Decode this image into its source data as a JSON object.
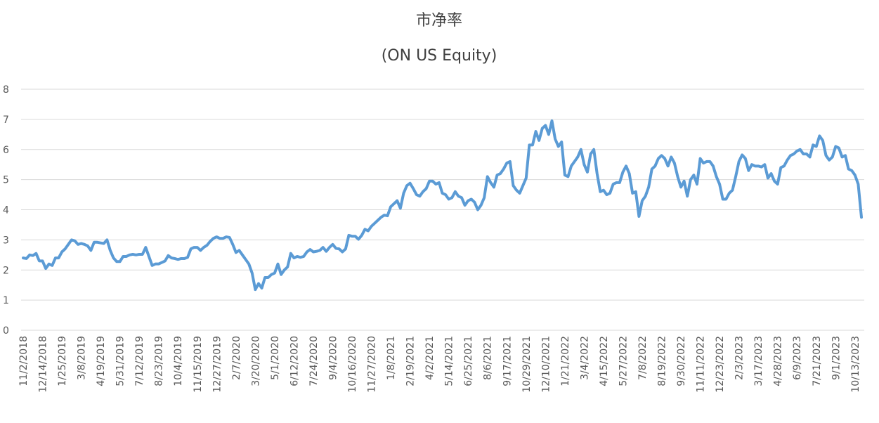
{
  "chart_data": {
    "type": "line",
    "title": "市净率",
    "subtitle": "(ON US Equity)",
    "categories": [
      "11/2/2018",
      null,
      null,
      null,
      null,
      null,
      "12/14/2018",
      null,
      null,
      null,
      null,
      null,
      "1/25/2019",
      null,
      null,
      null,
      null,
      null,
      "3/8/2019",
      null,
      null,
      null,
      null,
      null,
      "4/19/2019",
      null,
      null,
      null,
      null,
      null,
      "5/31/2019",
      null,
      null,
      null,
      null,
      null,
      "7/12/2019",
      null,
      null,
      null,
      null,
      null,
      "8/23/2019",
      null,
      null,
      null,
      null,
      null,
      "10/4/2019",
      null,
      null,
      null,
      null,
      null,
      "11/15/2019",
      null,
      null,
      null,
      null,
      null,
      "12/27/2019",
      null,
      null,
      null,
      null,
      null,
      "2/7/2020",
      null,
      null,
      null,
      null,
      null,
      "3/20/2020",
      null,
      null,
      null,
      null,
      null,
      "5/1/2020",
      null,
      null,
      null,
      null,
      null,
      "6/12/2020",
      null,
      null,
      null,
      null,
      null,
      "7/24/2020",
      null,
      null,
      null,
      null,
      null,
      "9/4/2020",
      null,
      null,
      null,
      null,
      null,
      "10/16/2020",
      null,
      null,
      null,
      null,
      null,
      "11/27/2020",
      null,
      null,
      null,
      null,
      null,
      "1/8/2021",
      null,
      null,
      null,
      null,
      null,
      "2/19/2021",
      null,
      null,
      null,
      null,
      null,
      "4/2/2021",
      null,
      null,
      null,
      null,
      null,
      "5/14/2021",
      null,
      null,
      null,
      null,
      null,
      "6/25/2021",
      null,
      null,
      null,
      null,
      null,
      "8/6/2021",
      null,
      null,
      null,
      null,
      null,
      "9/17/2021",
      null,
      null,
      null,
      null,
      null,
      "10/29/2021",
      null,
      null,
      null,
      null,
      null,
      "12/10/2021",
      null,
      null,
      null,
      null,
      null,
      "1/21/2022",
      null,
      null,
      null,
      null,
      null,
      "3/4/2022",
      null,
      null,
      null,
      null,
      null,
      "4/15/2022",
      null,
      null,
      null,
      null,
      null,
      "5/27/2022",
      null,
      null,
      null,
      null,
      null,
      "7/8/2022",
      null,
      null,
      null,
      null,
      null,
      "8/19/2022",
      null,
      null,
      null,
      null,
      null,
      "9/30/2022",
      null,
      null,
      null,
      null,
      null,
      "11/11/2022",
      null,
      null,
      null,
      null,
      null,
      "12/23/2022",
      null,
      null,
      null,
      null,
      null,
      "2/3/2023",
      null,
      null,
      null,
      null,
      null,
      "3/17/2023",
      null,
      null,
      null,
      null,
      null,
      "4/28/2023",
      null,
      null,
      null,
      null,
      null,
      "6/9/2023",
      null,
      null,
      null,
      null,
      null,
      "7/21/2023",
      null,
      null,
      null,
      null,
      null,
      "9/1/2023",
      null,
      null,
      null,
      null,
      null,
      "10/13/2023",
      null,
      null
    ],
    "values": [
      2.4,
      2.38,
      2.5,
      2.48,
      2.55,
      2.3,
      2.3,
      2.05,
      2.2,
      2.15,
      2.4,
      2.4,
      2.6,
      2.7,
      2.85,
      3.0,
      2.97,
      2.85,
      2.88,
      2.85,
      2.8,
      2.65,
      2.92,
      2.92,
      2.9,
      2.88,
      3.0,
      2.65,
      2.4,
      2.28,
      2.28,
      2.45,
      2.45,
      2.5,
      2.52,
      2.5,
      2.52,
      2.52,
      2.75,
      2.45,
      2.15,
      2.2,
      2.2,
      2.25,
      2.3,
      2.48,
      2.4,
      2.38,
      2.35,
      2.38,
      2.38,
      2.42,
      2.7,
      2.75,
      2.75,
      2.65,
      2.75,
      2.82,
      2.95,
      3.05,
      3.1,
      3.05,
      3.05,
      3.1,
      3.08,
      2.85,
      2.58,
      2.65,
      2.5,
      2.35,
      2.2,
      1.9,
      1.35,
      1.55,
      1.4,
      1.75,
      1.75,
      1.85,
      1.9,
      2.2,
      1.85,
      2.0,
      2.1,
      2.55,
      2.4,
      2.45,
      2.42,
      2.45,
      2.6,
      2.68,
      2.6,
      2.62,
      2.65,
      2.75,
      2.62,
      2.75,
      2.85,
      2.72,
      2.7,
      2.6,
      2.7,
      3.15,
      3.12,
      3.12,
      3.02,
      3.15,
      3.35,
      3.3,
      3.45,
      3.55,
      3.65,
      3.75,
      3.82,
      3.8,
      4.1,
      4.2,
      4.3,
      4.05,
      4.55,
      4.8,
      4.88,
      4.7,
      4.5,
      4.45,
      4.6,
      4.7,
      4.95,
      4.95,
      4.85,
      4.9,
      4.55,
      4.5,
      4.35,
      4.4,
      4.6,
      4.45,
      4.4,
      4.15,
      4.3,
      4.35,
      4.25,
      4.0,
      4.15,
      4.4,
      5.1,
      4.9,
      4.75,
      5.15,
      5.2,
      5.35,
      5.55,
      5.6,
      4.8,
      4.65,
      4.55,
      4.8,
      5.05,
      6.15,
      6.15,
      6.6,
      6.3,
      6.7,
      6.8,
      6.5,
      6.95,
      6.35,
      6.1,
      6.25,
      5.15,
      5.1,
      5.45,
      5.6,
      5.75,
      6.0,
      5.5,
      5.25,
      5.85,
      6.0,
      5.2,
      4.6,
      4.65,
      4.5,
      4.55,
      4.85,
      4.9,
      4.9,
      5.25,
      5.45,
      5.2,
      4.55,
      4.6,
      3.78,
      4.3,
      4.45,
      4.75,
      5.35,
      5.45,
      5.7,
      5.8,
      5.7,
      5.45,
      5.75,
      5.55,
      5.1,
      4.75,
      4.95,
      4.45,
      5.0,
      5.15,
      4.85,
      5.7,
      5.55,
      5.6,
      5.6,
      5.45,
      5.1,
      4.85,
      4.35,
      4.35,
      4.55,
      4.65,
      5.1,
      5.6,
      5.82,
      5.7,
      5.3,
      5.5,
      5.45,
      5.45,
      5.42,
      5.5,
      5.05,
      5.2,
      4.95,
      4.85,
      5.4,
      5.45,
      5.65,
      5.8,
      5.85,
      5.95,
      6.0,
      5.85,
      5.85,
      5.75,
      6.15,
      6.1,
      6.45,
      6.3,
      5.8,
      5.65,
      5.75,
      6.1,
      6.05,
      5.75,
      5.8,
      5.35,
      5.3,
      5.15,
      4.85,
      3.75
    ],
    "color": "#5b9bd5",
    "ylim": [
      0,
      8
    ],
    "yticks": [
      0,
      1,
      2,
      3,
      4,
      5,
      6,
      7,
      8
    ],
    "grid": true
  }
}
